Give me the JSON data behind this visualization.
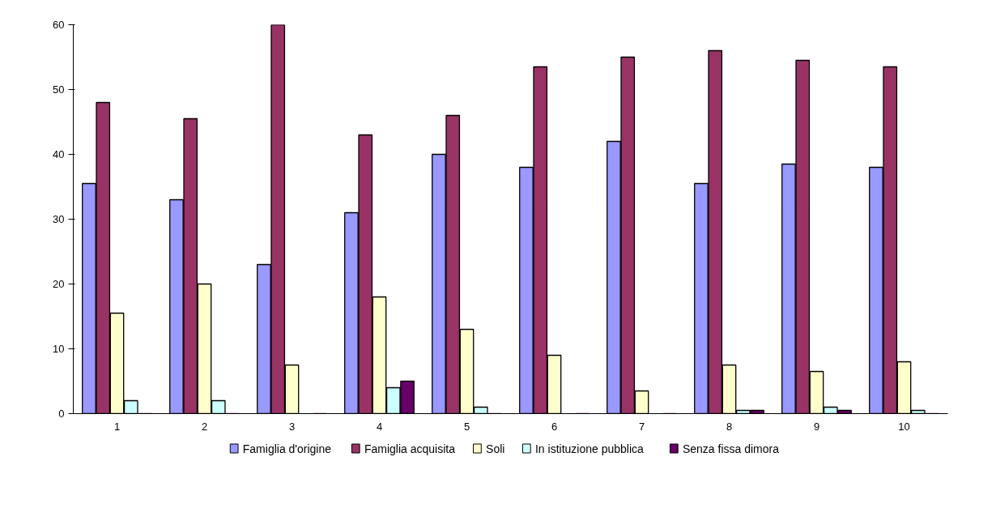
{
  "chart_data": {
    "type": "bar",
    "categories": [
      "1",
      "2",
      "3",
      "4",
      "5",
      "6",
      "7",
      "8",
      "9",
      "10"
    ],
    "series": [
      {
        "name": "Famiglia d'origine",
        "color": "#9999ff",
        "values": [
          35.5,
          33,
          23,
          31,
          40,
          38,
          42,
          35.5,
          38.5,
          38
        ]
      },
      {
        "name": "Famiglia acquisita",
        "color": "#993366",
        "values": [
          48,
          45.5,
          60,
          43,
          46,
          53.5,
          55,
          56,
          54.5,
          53.5
        ]
      },
      {
        "name": "Soli",
        "color": "#ffffcc",
        "values": [
          15.5,
          20,
          7.5,
          18,
          13,
          9,
          3.5,
          7.5,
          6.5,
          8
        ]
      },
      {
        "name": "In istituzione pubblica",
        "color": "#ccffff",
        "values": [
          2,
          2,
          0,
          4,
          1,
          0,
          0,
          0.5,
          1,
          0.5
        ]
      },
      {
        "name": "Senza fissa dimora",
        "color": "#660066",
        "values": [
          0,
          0,
          0,
          5,
          0,
          0,
          0,
          0.5,
          0.5,
          0
        ]
      }
    ],
    "ylim": [
      0,
      60
    ],
    "yticks": [
      0,
      10,
      20,
      30,
      40,
      50,
      60
    ],
    "grid": false,
    "legend": "bottom"
  }
}
